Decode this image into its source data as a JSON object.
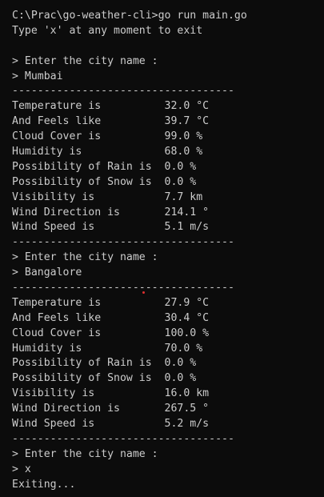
{
  "terminal": {
    "lines": [
      "C:\\Prac\\go-weather-cli>go run main.go",
      "Type 'x' at any moment to exit",
      "",
      "> Enter the city name :",
      "> Mumbai",
      "-----------------------------------",
      "Temperature is          32.0 °C",
      "And Feels like          39.7 °C",
      "Cloud Cover is          99.0 %",
      "Humidity is             68.0 %",
      "Possibility of Rain is  0.0 %",
      "Possibility of Snow is  0.0 %",
      "Visibility is           7.7 km",
      "Wind Direction is       214.1 °",
      "Wind Speed is           5.1 m/s",
      "-----------------------------------",
      "> Enter the city name :",
      "> Bangalore",
      "-----------------------------------",
      "Temperature is          27.9 °C",
      "And Feels like          30.4 °C",
      "Cloud Cover is          100.0 %",
      "Humidity is             70.0 %",
      "Possibility of Rain is  0.0 %",
      "Possibility of Snow is  0.0 %",
      "Visibility is           16.0 km",
      "Wind Direction is       267.5 °",
      "Wind Speed is           5.2 m/s",
      "-----------------------------------",
      "> Enter the city name :",
      "> x",
      "Exiting..."
    ]
  },
  "colors": {
    "background": "#0c0c0c",
    "text": "#cccccc",
    "cursor_marker": "#e03030"
  }
}
